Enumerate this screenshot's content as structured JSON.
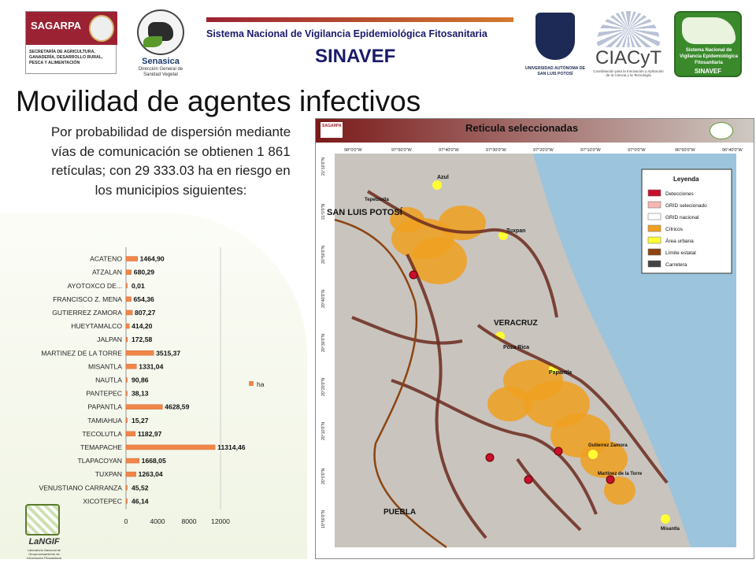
{
  "header": {
    "sagarpa": {
      "name": "SAGARPA",
      "subtitle": "SECRETARÍA DE AGRICULTURA, GANADERÍA, DESARROLLO RURAL, PESCA Y ALIMENTACIÓN"
    },
    "senasica": {
      "name": "Senasica",
      "subtitle": "Dirección General de Sanidad Vegetal"
    },
    "system_title": "Sistema Nacional de Vigilancia Epidemiológica Fitosanitaria",
    "system_acronym": "SINAVEF",
    "uaslp": "UNIVERSIDAD AUTÓNOMA DE SAN LUIS POTOSÍ",
    "ciacyt": {
      "name": "CIACyT",
      "subtitle": "Coordinación para la Innovación y Aplicación de la Ciencia y la Tecnología"
    },
    "sinavef_logo": {
      "text": "Sistema Nacional de Vigilancia Epidemiológica Fitosanitaria",
      "name": "SINAVEF"
    }
  },
  "slide": {
    "title": "Movilidad de agentes infectivos",
    "description": "Por probabilidad de dispersión mediante vías de comunicación se obtienen 1 861  retículas; con 29 333.03 ha en riesgo en los municipios siguientes:"
  },
  "footer": {
    "lanagif": "LaNGIF",
    "lanagif_sub": "Laboratorio Nacional de Geoprocesamiento de Información Fitosanitaria"
  },
  "map": {
    "title": "Reticula seleccionadas",
    "legend_title": "Leyenda",
    "legend": [
      "Detecciones",
      "GRID selecionado",
      "GRID nacional",
      "Cítricos",
      "Área urbana",
      "Límite estatal",
      "Carretera"
    ],
    "legend_colors": [
      "#c8102e",
      "#f5b7b1",
      "#ffffff",
      "#f0a020",
      "#ffff33",
      "#8b4513",
      "#444444"
    ],
    "places": [
      "SAN LUIS POTOSÍ",
      "VERACRUZ",
      "PUEBLA",
      "Tuxpan",
      "Poza Rica",
      "Papantla",
      "Gutierrez Zamora",
      "Martinez de la Torre",
      "Misantla",
      "Azul",
      "Tepetzintla"
    ],
    "top_ticks": [
      "98°0'0\"W",
      "97°50'0\"W",
      "97°40'0\"W",
      "97°30'0\"W",
      "97°20'0\"W",
      "97°10'0\"W",
      "97°0'0\"W",
      "96°50'0\"W",
      "96°40'0\"W"
    ],
    "left_ticks": [
      "21°10'0\"N",
      "21°0'0\"N",
      "20°50'0\"N",
      "20°40'0\"N",
      "20°30'0\"N",
      "20°20'0\"N",
      "20°10'0\"N",
      "20°0'0\"N",
      "19°50'0\"N"
    ]
  },
  "chart_data": {
    "type": "bar",
    "orientation": "horizontal",
    "categories": [
      "ACATENO",
      "ATZALAN",
      "AYOTOXCO DE...",
      "FRANCISCO Z. MENA",
      "GUTIERREZ ZAMORA",
      "HUEYTAMALCO",
      "JALPAN",
      "MARTINEZ DE LA TORRE",
      "MISANTLA",
      "NAUTLA",
      "PANTEPEC",
      "PAPANTLA",
      "TAMIAHUA",
      "TECOLUTLA",
      "TEMAPACHE",
      "TLAPACOYAN",
      "TUXPAN",
      "VENUSTIANO CARRANZA",
      "XICOTEPEC"
    ],
    "values": [
      1464.9,
      680.29,
      0.01,
      654.36,
      807.27,
      414.2,
      172.58,
      3515.37,
      1331.04,
      90.86,
      38.13,
      4628.59,
      15.27,
      1182.97,
      11314.46,
      1668.05,
      1263.04,
      45.52,
      46.14
    ],
    "value_labels": [
      "1464,90",
      "680,29",
      "0,01",
      "654,36",
      "807,27",
      "414,20",
      "172,58",
      "3515,37",
      "1331,04",
      "90,86",
      "38,13",
      "4628,59",
      "15,27",
      "1182,97",
      "11314,46",
      "1668,05",
      "1263,04",
      "45,52",
      "46,14"
    ],
    "series": [
      {
        "name": "ha",
        "color": "#f0864a"
      }
    ],
    "xticks": [
      "0",
      "4000",
      "8000",
      "12000"
    ],
    "xlim": [
      0,
      12000
    ],
    "legend_position": "right",
    "grid": false
  }
}
